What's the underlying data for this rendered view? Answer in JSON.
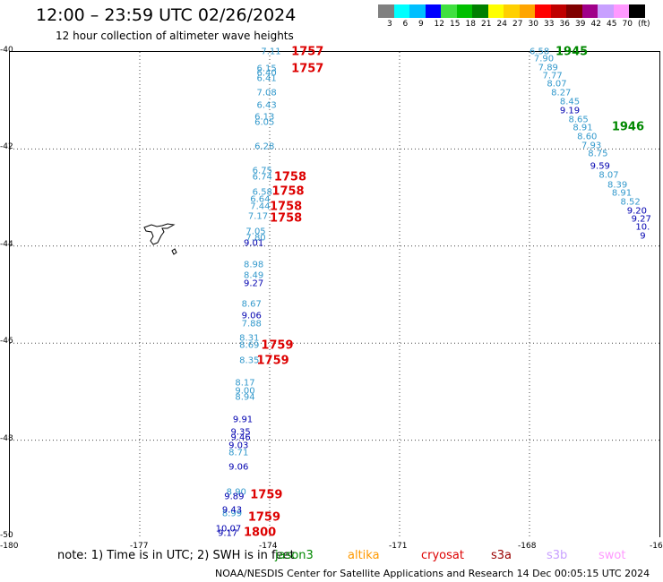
{
  "header": {
    "title": "12:00 – 23:59 UTC 02/26/2024",
    "subtitle": "12 hour collection of altimeter wave heights"
  },
  "legend": {
    "colors": [
      "#808080",
      "#00ffff",
      "#00bfff",
      "#0000ff",
      "#40e040",
      "#00c000",
      "#008000",
      "#ffff00",
      "#ffd000",
      "#ffa500",
      "#ff0000",
      "#c00000",
      "#800000",
      "#a0008a",
      "#c8a0ff",
      "#ff99ff",
      "#000000"
    ],
    "ticks": [
      "3",
      "6",
      "9",
      "12",
      "15",
      "18",
      "21",
      "24",
      "27",
      "30",
      "33",
      "36",
      "39",
      "42",
      "45",
      "70",
      "(ft)"
    ]
  },
  "axes": {
    "x_ticks": [
      "-180",
      "-177",
      "-174",
      "-171",
      "-168",
      "-16"
    ],
    "y_ticks": [
      "-40",
      "-42",
      "-44",
      "-46",
      "-48",
      "-50"
    ]
  },
  "tracks": [
    {
      "color": "#3399cc",
      "items": [
        {
          "t": "7.11",
          "lon": -174.2,
          "lat": -40.0
        },
        {
          "t": "6.15",
          "lon": -174.3,
          "lat": -40.35
        },
        {
          "t": "6.40",
          "lon": -174.3,
          "lat": -40.45
        },
        {
          "t": "6.41",
          "lon": -174.3,
          "lat": -40.55
        },
        {
          "t": "7.08",
          "lon": -174.3,
          "lat": -40.85
        },
        {
          "t": "6.43",
          "lon": -174.3,
          "lat": -41.1
        },
        {
          "t": "6.13",
          "lon": -174.35,
          "lat": -41.35
        },
        {
          "t": "6.05",
          "lon": -174.35,
          "lat": -41.45
        },
        {
          "t": "6.28",
          "lon": -174.35,
          "lat": -41.95
        },
        {
          "t": "6.75",
          "lon": -174.4,
          "lat": -42.45
        },
        {
          "t": "6.74",
          "lon": -174.4,
          "lat": -42.58
        },
        {
          "t": "6.58",
          "lon": -174.4,
          "lat": -42.9
        },
        {
          "t": "6.64",
          "lon": -174.45,
          "lat": -43.05
        },
        {
          "t": "7.44",
          "lon": -174.45,
          "lat": -43.2
        },
        {
          "t": "7.17",
          "lon": -174.5,
          "lat": -43.4
        },
        {
          "t": "7.05",
          "lon": -174.55,
          "lat": -43.7
        },
        {
          "t": "7.80",
          "lon": -174.55,
          "lat": -43.83
        },
        {
          "t": "8.98",
          "lon": -174.6,
          "lat": -44.4
        },
        {
          "t": "8.49",
          "lon": -174.6,
          "lat": -44.62
        },
        {
          "t": "8.67",
          "lon": -174.65,
          "lat": -45.2
        },
        {
          "t": "7.88",
          "lon": -174.65,
          "lat": -45.6
        },
        {
          "t": "8.31",
          "lon": -174.7,
          "lat": -45.9
        },
        {
          "t": "8.69",
          "lon": -174.7,
          "lat": -46.05
        },
        {
          "t": "8.35",
          "lon": -174.7,
          "lat": -46.37
        },
        {
          "t": "8.17",
          "lon": -174.8,
          "lat": -46.82
        },
        {
          "t": "9.00",
          "lon": -174.8,
          "lat": -47.0
        },
        {
          "t": "8.94",
          "lon": -174.8,
          "lat": -47.12
        },
        {
          "t": "8.71",
          "lon": -174.95,
          "lat": -48.27
        },
        {
          "t": "8.90",
          "lon": -175.0,
          "lat": -49.07
        },
        {
          "t": "8.99",
          "lon": -175.1,
          "lat": -49.52
        },
        {
          "t": "6.58",
          "lon": -168.0,
          "lat": -40.0
        },
        {
          "t": "7.90",
          "lon": -167.9,
          "lat": -40.15
        },
        {
          "t": "7.89",
          "lon": -167.8,
          "lat": -40.33
        },
        {
          "t": "7.77",
          "lon": -167.7,
          "lat": -40.5
        },
        {
          "t": "8.07",
          "lon": -167.6,
          "lat": -40.67
        },
        {
          "t": "8.27",
          "lon": -167.5,
          "lat": -40.85
        },
        {
          "t": "8.45",
          "lon": -167.3,
          "lat": -41.03
        },
        {
          "t": "8.65",
          "lon": -167.1,
          "lat": -41.4
        },
        {
          "t": "8.91",
          "lon": -167.0,
          "lat": -41.57
        },
        {
          "t": "8.60",
          "lon": -166.9,
          "lat": -41.75
        },
        {
          "t": "7.93",
          "lon": -166.8,
          "lat": -41.93
        },
        {
          "t": "8.75",
          "lon": -166.65,
          "lat": -42.1
        },
        {
          "t": "8.07",
          "lon": -166.4,
          "lat": -42.55
        },
        {
          "t": "8.39",
          "lon": -166.2,
          "lat": -42.75
        },
        {
          "t": "8.91",
          "lon": -166.1,
          "lat": -42.92
        },
        {
          "t": "8.52",
          "lon": -165.9,
          "lat": -43.1
        }
      ]
    },
    {
      "color": "#0000b0",
      "items": [
        {
          "t": "9.01",
          "lon": -174.6,
          "lat": -43.95
        },
        {
          "t": "9.27",
          "lon": -174.6,
          "lat": -44.78
        },
        {
          "t": "9.06",
          "lon": -174.65,
          "lat": -45.45
        },
        {
          "t": "9.91",
          "lon": -174.85,
          "lat": -47.58
        },
        {
          "t": "9.35",
          "lon": -174.9,
          "lat": -47.85
        },
        {
          "t": "9.46",
          "lon": -174.9,
          "lat": -47.95
        },
        {
          "t": "9.03",
          "lon": -174.95,
          "lat": -48.12
        },
        {
          "t": "9.06",
          "lon": -174.95,
          "lat": -48.57
        },
        {
          "t": "9.89",
          "lon": -175.05,
          "lat": -49.17
        },
        {
          "t": "9.43",
          "lon": -175.1,
          "lat": -49.45
        },
        {
          "t": "10.07",
          "lon": -175.25,
          "lat": -49.83
        },
        {
          "t": "9.17",
          "lon": -175.2,
          "lat": -49.93
        },
        {
          "t": "9.19",
          "lon": -167.3,
          "lat": -41.22
        },
        {
          "t": "9.59",
          "lon": -166.6,
          "lat": -42.37
        },
        {
          "t": "9.20",
          "lon": -165.75,
          "lat": -43.28
        },
        {
          "t": "9.27",
          "lon": -165.65,
          "lat": -43.45
        },
        {
          "t": "10.",
          "lon": -165.55,
          "lat": -43.62
        },
        {
          "t": "9",
          "lon": -165.45,
          "lat": -43.8
        }
      ]
    }
  ],
  "time_labels": [
    {
      "t": "1757",
      "color": "#dd0000",
      "lon": -173.5,
      "lat": -40.0
    },
    {
      "t": "1757",
      "color": "#dd0000",
      "lon": -173.5,
      "lat": -40.35
    },
    {
      "t": "1758",
      "color": "#dd0000",
      "lon": -173.9,
      "lat": -42.58
    },
    {
      "t": "1758",
      "color": "#dd0000",
      "lon": -173.95,
      "lat": -42.87
    },
    {
      "t": "1758",
      "color": "#dd0000",
      "lon": -174.0,
      "lat": -43.2
    },
    {
      "t": "1758",
      "color": "#dd0000",
      "lon": -174.0,
      "lat": -43.43
    },
    {
      "t": "1759",
      "color": "#dd0000",
      "lon": -174.2,
      "lat": -46.06
    },
    {
      "t": "1759",
      "color": "#dd0000",
      "lon": -174.3,
      "lat": -46.37
    },
    {
      "t": "1759",
      "color": "#dd0000",
      "lon": -174.45,
      "lat": -49.13
    },
    {
      "t": "1759",
      "color": "#dd0000",
      "lon": -174.5,
      "lat": -49.6
    },
    {
      "t": "1800",
      "color": "#dd0000",
      "lon": -174.6,
      "lat": -49.9
    },
    {
      "t": "1945",
      "color": "#008800",
      "lon": -167.4,
      "lat": -40.0
    },
    {
      "t": "1946",
      "color": "#008800",
      "lon": -166.1,
      "lat": -41.55
    }
  ],
  "footer": {
    "note": "note:  1) Time is in UTC; 2) SWH is in feet",
    "satellites": [
      {
        "name": "jason3",
        "color": "#008800"
      },
      {
        "name": "altika",
        "color": "#ff9900"
      },
      {
        "name": "cryosat",
        "color": "#dd0000"
      },
      {
        "name": "s3a",
        "color": "#990000"
      },
      {
        "name": "s3b",
        "color": "#c8a0ff"
      },
      {
        "name": "swot",
        "color": "#ff99ff"
      }
    ],
    "credit": "NOAA/NESDIS Center for Satellite Applications and Research     14 Dec 00:05:15 UTC 2024"
  }
}
